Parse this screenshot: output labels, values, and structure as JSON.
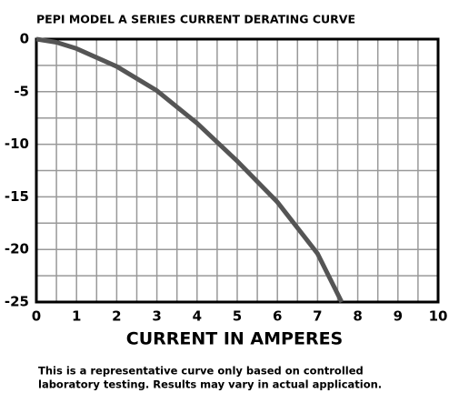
{
  "chart_data": {
    "type": "line",
    "title": "PEPI MODEL A SERIES CURRENT DERATING CURVE",
    "x_label": "CURRENT IN AMPERES",
    "note": [
      "This is a representative curve only based on controlled",
      "laboratory testing. Results may vary in actual application."
    ],
    "x": [
      0,
      0.5,
      1,
      2,
      3,
      4,
      5,
      6,
      7,
      7.6
    ],
    "values": [
      0,
      -0.3,
      -0.9,
      -2.6,
      -4.9,
      -8.0,
      -11.6,
      -15.5,
      -20.4,
      -25
    ],
    "color": "#555555",
    "xlim": [
      0,
      10
    ],
    "xticks": [
      0,
      1,
      2,
      3,
      4,
      5,
      6,
      7,
      8,
      9,
      10
    ],
    "minor_xticks": [
      0.5,
      1.5,
      2.5,
      3.5,
      4.5,
      5.5,
      6.5,
      7.5,
      8.5,
      9.5
    ],
    "ylim": [
      -25,
      0
    ],
    "yticks": [
      0,
      -5,
      -10,
      -15,
      -20,
      -25
    ],
    "minor_yticks": [
      -2.5,
      -7.5,
      -12.5,
      -17.5,
      -22.5
    ],
    "grid": true
  }
}
